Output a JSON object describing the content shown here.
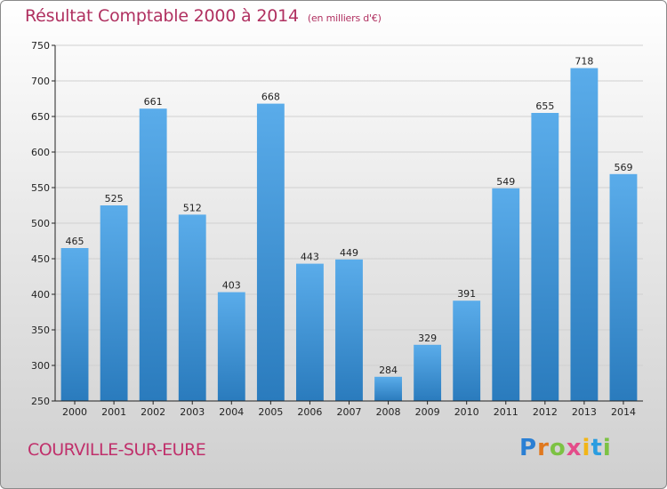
{
  "header": {
    "title": "Résultat Comptable 2000 à 2014",
    "unit": "(en milliers d'€)"
  },
  "footer": {
    "place": "COURVILLE-SUR-EURE",
    "logo": "Proxiti"
  },
  "chart_data": {
    "type": "bar",
    "title": "Résultat Comptable 2000 à 2014",
    "subtitle": "(en milliers d'€)",
    "xlabel": "",
    "ylabel": "",
    "categories": [
      "2000",
      "2001",
      "2002",
      "2003",
      "2004",
      "2005",
      "2006",
      "2007",
      "2008",
      "2009",
      "2010",
      "2011",
      "2012",
      "2013",
      "2014"
    ],
    "values": [
      465,
      525,
      661,
      512,
      403,
      668,
      443,
      449,
      284,
      329,
      391,
      549,
      655,
      718,
      569
    ],
    "ylim": [
      250,
      750
    ],
    "yticks": [
      250,
      300,
      350,
      400,
      450,
      500,
      550,
      600,
      650,
      700,
      750
    ],
    "grid": true,
    "bar_color_top": "#5aacea",
    "bar_color_bottom": "#2a7bbd"
  }
}
